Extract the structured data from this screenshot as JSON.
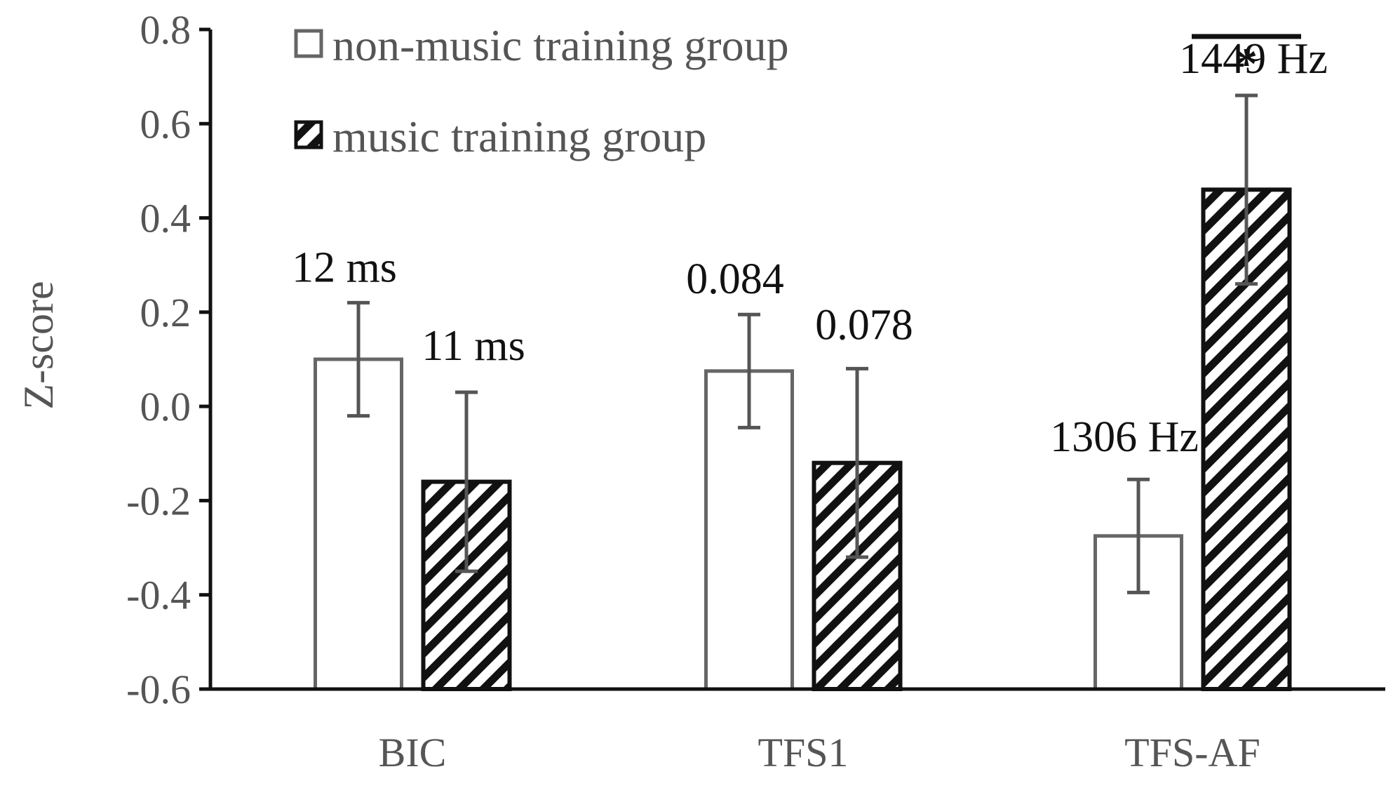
{
  "chart_data": {
    "type": "bar",
    "categories": [
      "BIC",
      "TFS1",
      "TFS-AF"
    ],
    "ylabel": "Z-score",
    "xlabel": "",
    "ylim": [
      -0.6,
      0.8
    ],
    "yticks": [
      0.8,
      0.6,
      0.4,
      0.2,
      0.0,
      -0.2,
      -0.4,
      -0.6
    ],
    "ytick_labels": [
      "0.8",
      "0.6",
      "0.4",
      "0.2",
      "0.0",
      "-0.2",
      "-0.4",
      "-0.6"
    ],
    "grid": false,
    "legend_position": "top-left",
    "series": [
      {
        "name": "non-music training group",
        "fill": "white",
        "values": [
          0.1,
          0.075,
          -0.275
        ],
        "error": [
          0.12,
          0.12,
          0.12
        ],
        "labels": [
          "12 ms",
          "0.084",
          "1306 Hz"
        ]
      },
      {
        "name": "music training group",
        "fill": "hatched",
        "values": [
          -0.16,
          -0.12,
          0.46
        ],
        "error": [
          0.19,
          0.2,
          0.2
        ],
        "labels": [
          "11 ms",
          "0.078",
          "1449 Hz"
        ]
      }
    ],
    "annotations": [
      {
        "text": "*",
        "category": "TFS-AF",
        "meaning": "significance"
      }
    ],
    "colors": {
      "bar_edge": "#111111",
      "error_bar": "#555555",
      "axis": "#111111",
      "text": "#555555"
    }
  }
}
